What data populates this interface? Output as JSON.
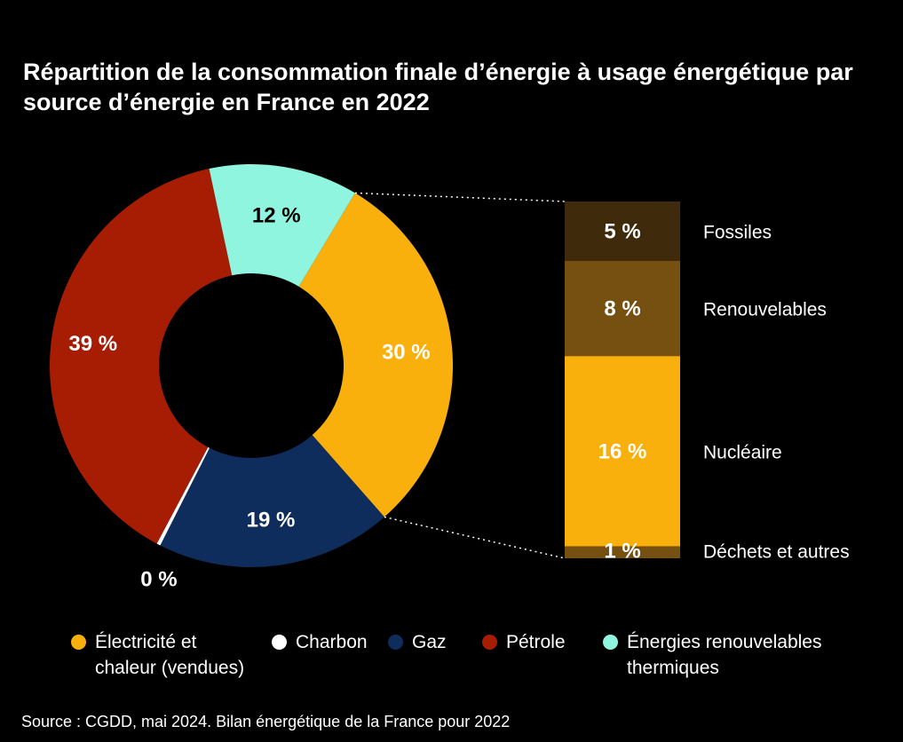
{
  "title": "Répartition de la consommation finale d’énergie à usage énergétique par source d’énergie en France en 2022",
  "source": "Source : CGDD, mai 2024. Bilan énergétique de la France pour 2022",
  "colors": {
    "background": "#000000",
    "electricite": "#F9B00D",
    "charbon": "#FFFFFF",
    "gaz": "#0E2D5C",
    "petrole": "#A71D03",
    "enr": "#8FF5DF",
    "fossiles": "#3F2A0C",
    "renouvelables": "#765010",
    "nucleaire": "#F9B00D",
    "dechets": "#765010"
  },
  "legend": [
    {
      "key": "electricite",
      "label_line1": "Électricité et",
      "label_line2": "chaleur (vendues)"
    },
    {
      "key": "charbon",
      "label_line1": "Charbon",
      "label_line2": ""
    },
    {
      "key": "gaz",
      "label_line1": "Gaz",
      "label_line2": ""
    },
    {
      "key": "petrole",
      "label_line1": "Pétrole",
      "label_line2": ""
    },
    {
      "key": "enr",
      "label_line1": "Énergies renouvelables",
      "label_line2": "thermiques"
    }
  ],
  "chart_data": [
    {
      "type": "pie",
      "subtype": "donut",
      "start_angle_deg": 31,
      "direction": "clockwise",
      "slices": [
        {
          "key": "electricite",
          "label": "Électricité et chaleur (vendues)",
          "value": 30,
          "value_label": "30 %"
        },
        {
          "key": "gaz",
          "label": "Gaz",
          "value": 19,
          "value_label": "19 %"
        },
        {
          "key": "charbon",
          "label": "Charbon",
          "value": 0.3,
          "value_label": "0 %"
        },
        {
          "key": "petrole",
          "label": "Pétrole",
          "value": 39,
          "value_label": "39 %"
        },
        {
          "key": "enr",
          "label": "Énergies renouvelables thermiques",
          "value": 12,
          "value_label": "12 %"
        }
      ]
    },
    {
      "type": "bar",
      "subtype": "stacked-breakdown",
      "breakdown_of": "Électricité et chaleur (vendues)",
      "segments": [
        {
          "key": "fossiles",
          "label": "Fossiles",
          "value": 5,
          "value_label": "5 %"
        },
        {
          "key": "renouvelables",
          "label": "Renouvelables",
          "value": 8,
          "value_label": "8 %"
        },
        {
          "key": "nucleaire",
          "label": "Nucléaire",
          "value": 16,
          "value_label": "16 %"
        },
        {
          "key": "dechets",
          "label": "Déchets et autres",
          "value": 1,
          "value_label": "1 %"
        }
      ]
    }
  ]
}
